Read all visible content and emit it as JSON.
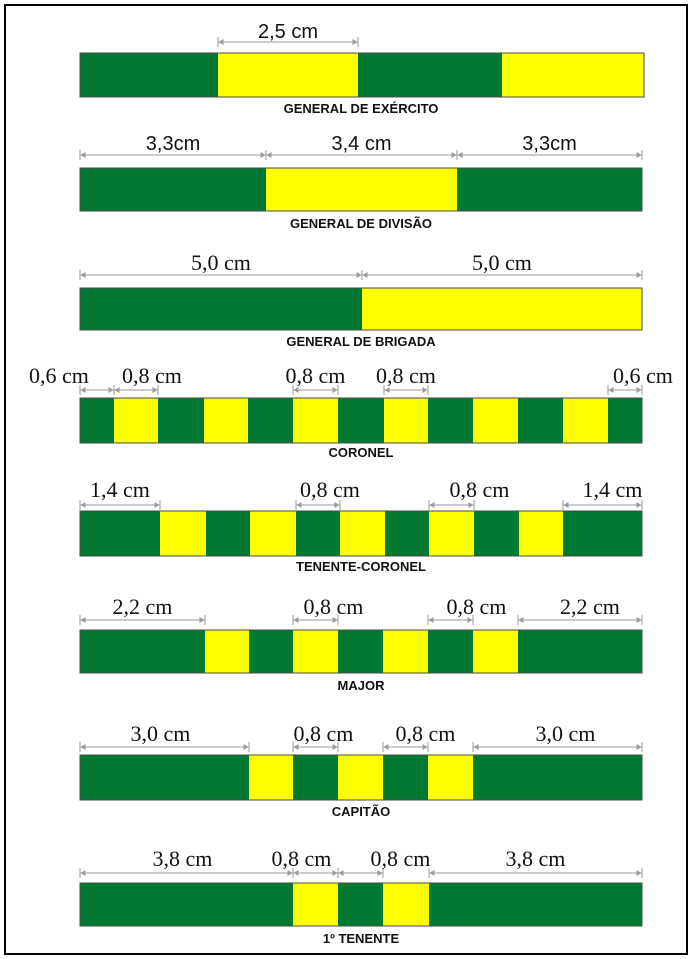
{
  "colors": {
    "green": "#007a33",
    "yellow": "#ffff00",
    "line": "#9a9a9a"
  },
  "diagram": {
    "ranks": [
      {
        "name": "GENERAL DE EXÉRCITO",
        "stripes": [
          "green",
          "yellow",
          "green",
          "yellow"
        ],
        "measures": [
          {
            "label": "2,5 cm",
            "segment": 1
          }
        ]
      },
      {
        "name": "GENERAL DE DIVISÃO",
        "stripes": [
          "green",
          "yellow",
          "green"
        ],
        "measures": [
          {
            "label": "3,3cm",
            "segment": 0
          },
          {
            "label": "3,4 cm",
            "segment": 1
          },
          {
            "label": "3,3cm",
            "segment": 2
          }
        ]
      },
      {
        "name": "GENERAL DE BRIGADA",
        "stripes": [
          "green",
          "yellow"
        ],
        "measures": [
          {
            "label": "5,0 cm",
            "segment": 0
          },
          {
            "label": "5,0 cm",
            "segment": 1
          }
        ]
      },
      {
        "name": "CORONEL",
        "stripes": [
          "green",
          "yellow",
          "green",
          "yellow",
          "green",
          "yellow",
          "green",
          "yellow",
          "green",
          "yellow",
          "green",
          "yellow",
          "green"
        ],
        "measures": [
          {
            "label": "0,6 cm",
            "segment": 0
          },
          {
            "label": "0,8 cm",
            "segment": 1
          },
          {
            "label": "0,8 cm",
            "segment": 5
          },
          {
            "label": "0,8 cm",
            "segment": 7
          },
          {
            "label": "0,6 cm",
            "segment": 12
          }
        ]
      },
      {
        "name": "TENENTE-CORONEL",
        "stripes": [
          "green",
          "yellow",
          "green",
          "yellow",
          "green",
          "yellow",
          "green",
          "yellow",
          "green",
          "yellow",
          "green"
        ],
        "measures": [
          {
            "label": "1,4 cm",
            "segment": 0
          },
          {
            "label": "0,8 cm",
            "segment": 4
          },
          {
            "label": "0,8 cm",
            "segment": 7
          },
          {
            "label": "1,4 cm",
            "segment": 10
          }
        ]
      },
      {
        "name": "MAJOR",
        "stripes": [
          "green",
          "yellow",
          "green",
          "yellow",
          "green",
          "yellow",
          "green",
          "yellow",
          "green"
        ],
        "measures": [
          {
            "label": "2,2 cm",
            "segment": 0
          },
          {
            "label": "0,8 cm",
            "segment": 3
          },
          {
            "label": "0,8 cm",
            "segment": 6
          },
          {
            "label": "2,2 cm",
            "segment": 8
          }
        ]
      },
      {
        "name": "CAPITÃO",
        "stripes": [
          "green",
          "yellow",
          "green",
          "yellow",
          "green",
          "yellow",
          "green"
        ],
        "measures": [
          {
            "label": "3,0 cm",
            "segment": 0
          },
          {
            "label": "0,8 cm",
            "segment": 2
          },
          {
            "label": "0,8 cm",
            "segment": 4
          },
          {
            "label": "3,0 cm",
            "segment": 6
          }
        ]
      },
      {
        "name": "1º TENENTE",
        "stripes": [
          "green",
          "yellow",
          "green",
          "yellow",
          "green"
        ],
        "measures": [
          {
            "label": "3,8 cm",
            "segment": 0
          },
          {
            "label": "0,8 cm",
            "segment": 1
          },
          {
            "label": "0,8 cm",
            "segment": 2
          },
          {
            "label": "3,8 cm",
            "segment": 4
          }
        ]
      }
    ]
  }
}
